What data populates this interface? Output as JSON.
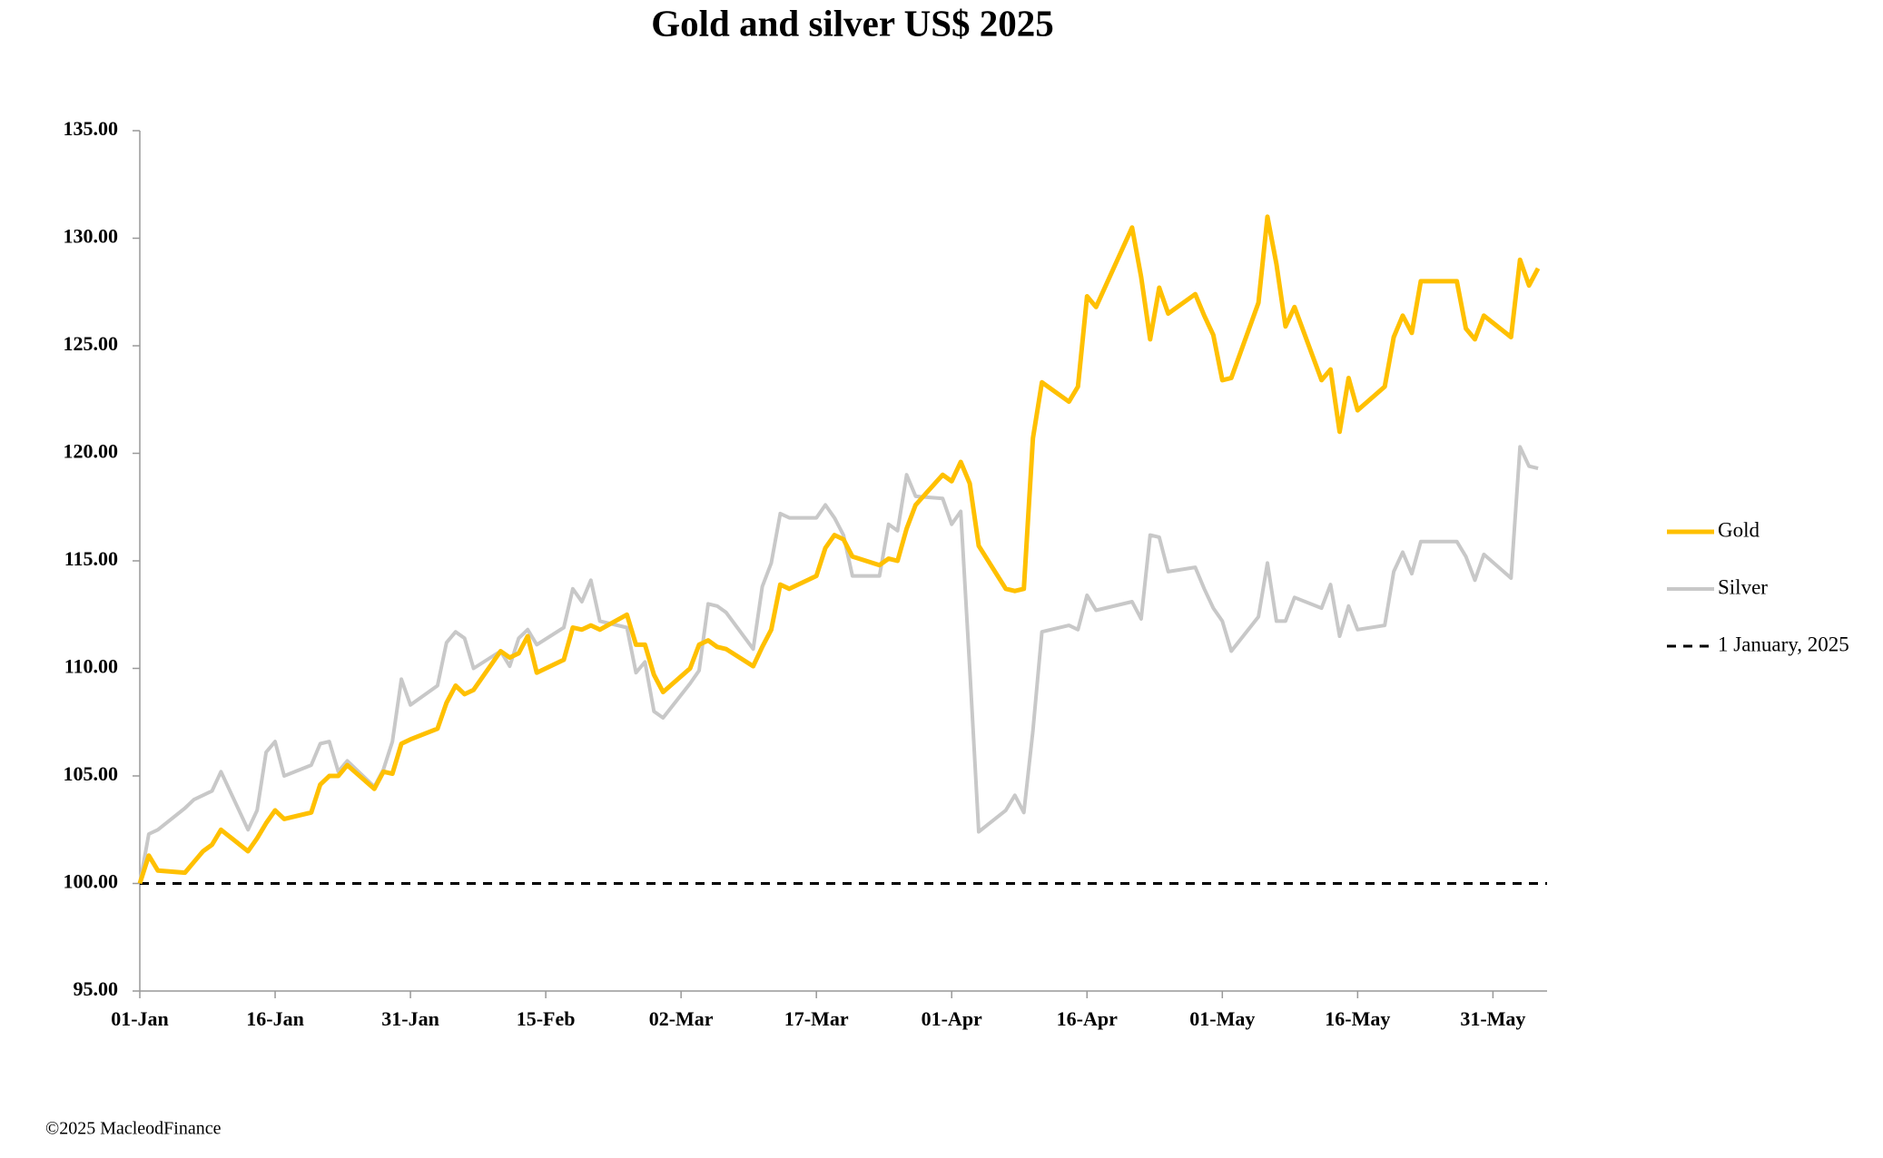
{
  "chart_data": {
    "type": "line",
    "title": "Gold and silver  US$ 2025",
    "source": "©2025 MacleodFinance",
    "x": [
      "01-Jan",
      "02-Jan",
      "03-Jan",
      "06-Jan",
      "07-Jan",
      "08-Jan",
      "09-Jan",
      "10-Jan",
      "13-Jan",
      "14-Jan",
      "15-Jan",
      "16-Jan",
      "17-Jan",
      "20-Jan",
      "21-Jan",
      "22-Jan",
      "23-Jan",
      "24-Jan",
      "27-Jan",
      "28-Jan",
      "29-Jan",
      "30-Jan",
      "31-Jan",
      "03-Feb",
      "04-Feb",
      "05-Feb",
      "06-Feb",
      "07-Feb",
      "10-Feb",
      "11-Feb",
      "12-Feb",
      "13-Feb",
      "14-Feb",
      "17-Feb",
      "18-Feb",
      "19-Feb",
      "20-Feb",
      "21-Feb",
      "24-Feb",
      "25-Feb",
      "26-Feb",
      "27-Feb",
      "28-Feb",
      "03-Mar",
      "04-Mar",
      "05-Mar",
      "06-Mar",
      "07-Mar",
      "10-Mar",
      "11-Mar",
      "12-Mar",
      "13-Mar",
      "14-Mar",
      "17-Mar",
      "18-Mar",
      "19-Mar",
      "20-Mar",
      "21-Mar",
      "24-Mar",
      "25-Mar",
      "26-Mar",
      "27-Mar",
      "28-Mar",
      "31-Mar",
      "01-Apr",
      "02-Apr",
      "03-Apr",
      "04-Apr",
      "07-Apr",
      "08-Apr",
      "09-Apr",
      "10-Apr",
      "11-Apr",
      "14-Apr",
      "15-Apr",
      "16-Apr",
      "17-Apr",
      "21-Apr",
      "22-Apr",
      "23-Apr",
      "24-Apr",
      "25-Apr",
      "28-Apr",
      "29-Apr",
      "30-Apr",
      "01-May",
      "02-May",
      "05-May",
      "06-May",
      "07-May",
      "08-May",
      "09-May",
      "12-May",
      "13-May",
      "14-May",
      "15-May",
      "16-May",
      "19-May",
      "20-May",
      "21-May",
      "22-May",
      "23-May",
      "26-May",
      "27-May",
      "28-May",
      "29-May",
      "30-May",
      "02-Jun",
      "03-Jun",
      "04-Jun",
      "05-Jun"
    ],
    "series": [
      {
        "name": "Gold",
        "color": "#FFC000",
        "values": [
          100,
          101.3,
          100.6,
          100.5,
          101.0,
          101.5,
          101.8,
          102.5,
          101.5,
          102.1,
          102.8,
          103.4,
          103.0,
          103.3,
          104.6,
          105.0,
          105.0,
          105.5,
          104.4,
          105.2,
          105.1,
          106.5,
          106.7,
          107.2,
          108.4,
          109.2,
          108.8,
          109.0,
          110.8,
          110.5,
          110.7,
          111.5,
          109.8,
          110.4,
          111.9,
          111.8,
          112.0,
          111.8,
          112.5,
          111.1,
          111.1,
          109.7,
          108.9,
          110.0,
          111.1,
          111.3,
          111.0,
          110.9,
          110.1,
          111.0,
          111.8,
          113.9,
          113.7,
          114.3,
          115.6,
          116.2,
          116.0,
          115.2,
          114.8,
          115.1,
          115.0,
          116.5,
          117.6,
          119.0,
          118.7,
          119.6,
          118.6,
          115.7,
          113.7,
          113.6,
          113.7,
          120.7,
          123.3,
          122.4,
          123.1,
          127.3,
          126.8,
          130.5,
          128.2,
          125.3,
          127.7,
          126.5,
          127.4,
          126.4,
          125.5,
          123.4,
          123.5,
          127.0,
          131.0,
          128.8,
          125.9,
          126.8,
          123.4,
          123.9,
          121.0,
          123.5,
          122.0,
          123.1,
          125.4,
          126.4,
          125.6,
          128.0,
          128.0,
          128.0,
          125.8,
          125.3,
          126.4,
          125.4,
          129.0,
          127.8,
          128.6
        ]
      },
      {
        "name": "Silver",
        "color": "#C8C8C8",
        "values": [
          100,
          102.3,
          102.5,
          103.5,
          103.9,
          104.1,
          104.3,
          105.2,
          102.5,
          103.4,
          106.1,
          106.6,
          105.0,
          105.5,
          106.5,
          106.6,
          105.2,
          105.7,
          104.5,
          105.3,
          106.6,
          109.5,
          108.3,
          109.2,
          111.2,
          111.7,
          111.4,
          110.0,
          110.8,
          110.1,
          111.4,
          111.8,
          111.1,
          111.9,
          113.7,
          113.1,
          114.1,
          112.2,
          111.9,
          109.8,
          110.3,
          108.0,
          107.7,
          109.3,
          109.9,
          113.0,
          112.9,
          112.6,
          110.9,
          113.8,
          114.9,
          117.2,
          117.0,
          117.0,
          117.6,
          117.0,
          116.2,
          114.3,
          114.3,
          116.7,
          116.4,
          119.0,
          118.0,
          117.9,
          116.7,
          117.3,
          110.0,
          102.4,
          103.4,
          104.1,
          103.3,
          107.1,
          111.7,
          112.0,
          111.8,
          113.4,
          112.7,
          113.1,
          112.3,
          116.2,
          116.1,
          114.5,
          114.7,
          113.7,
          112.8,
          112.2,
          110.8,
          112.4,
          114.9,
          112.2,
          112.2,
          113.3,
          112.8,
          113.9,
          111.5,
          112.9,
          111.8,
          112.0,
          114.5,
          115.4,
          114.4,
          115.9,
          115.9,
          115.9,
          115.2,
          114.1,
          115.3,
          114.2,
          120.3,
          119.4,
          119.3
        ]
      }
    ],
    "reference": {
      "name": "1 January, 2025",
      "value": 100,
      "color": "#000000"
    },
    "xlim": [
      "01-Jan",
      "06-Jun"
    ],
    "xticks": [
      "01-Jan",
      "16-Jan",
      "31-Jan",
      "15-Feb",
      "02-Mar",
      "17-Mar",
      "01-Apr",
      "16-Apr",
      "01-May",
      "16-May",
      "31-May"
    ],
    "ylim": [
      95,
      135
    ],
    "yticks": [
      {
        "value": 95,
        "label": "95.00"
      },
      {
        "value": 100,
        "label": "100.00"
      },
      {
        "value": 105,
        "label": "105.00"
      },
      {
        "value": 110,
        "label": "110.00"
      },
      {
        "value": 115,
        "label": "115.00"
      },
      {
        "value": 120,
        "label": "120.00"
      },
      {
        "value": 125,
        "label": "125.00"
      },
      {
        "value": 130,
        "label": "130.00"
      },
      {
        "value": 135,
        "label": "135.00"
      }
    ],
    "grid": false,
    "legend": "right"
  }
}
